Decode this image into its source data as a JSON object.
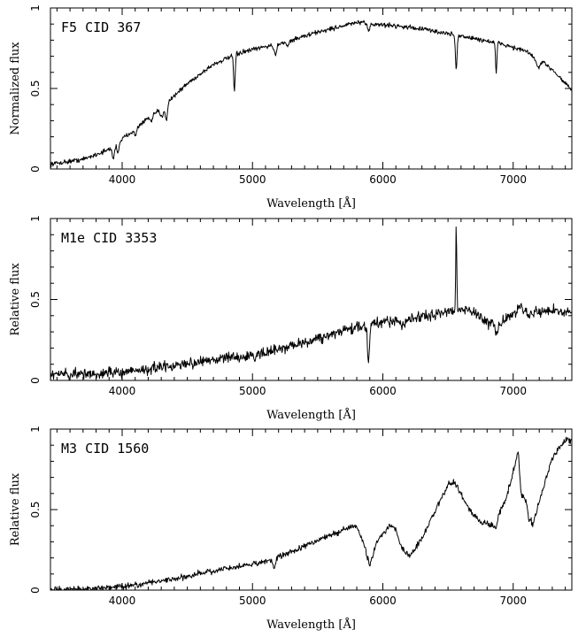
{
  "chart_data": [
    {
      "type": "line",
      "title": "F5 CID 367",
      "xlabel": "Wavelength [Å]",
      "ylabel": "Normalized flux",
      "xlim": [
        3450,
        7450
      ],
      "ylim": [
        0,
        1
      ],
      "xticks": [
        "4000",
        "5000",
        "6000",
        "7000"
      ],
      "yticks": [
        "0",
        "0.5",
        "1"
      ],
      "continuum": [
        [
          3450,
          0.03
        ],
        [
          3700,
          0.06
        ],
        [
          3900,
          0.12
        ],
        [
          4100,
          0.25
        ],
        [
          4300,
          0.38
        ],
        [
          4500,
          0.53
        ],
        [
          4700,
          0.65
        ],
        [
          4900,
          0.72
        ],
        [
          5100,
          0.76
        ],
        [
          5300,
          0.8
        ],
        [
          5500,
          0.85
        ],
        [
          5700,
          0.89
        ],
        [
          5800,
          0.91
        ],
        [
          5900,
          0.9
        ],
        [
          6100,
          0.89
        ],
        [
          6300,
          0.87
        ],
        [
          6500,
          0.84
        ],
        [
          6700,
          0.81
        ],
        [
          6900,
          0.78
        ],
        [
          7100,
          0.73
        ],
        [
          7300,
          0.62
        ],
        [
          7450,
          0.49
        ]
      ],
      "features": [
        [
          3933,
          -0.08,
          8
        ],
        [
          3968,
          -0.06,
          8
        ],
        [
          4101,
          -0.05,
          8
        ],
        [
          4226,
          -0.04,
          10
        ],
        [
          4305,
          -0.06,
          14
        ],
        [
          4340,
          -0.1,
          8
        ],
        [
          4861,
          -0.22,
          6
        ],
        [
          5175,
          -0.06,
          12
        ],
        [
          5270,
          -0.03,
          10
        ],
        [
          5890,
          -0.04,
          8
        ],
        [
          6563,
          -0.22,
          6
        ],
        [
          6870,
          -0.2,
          5
        ],
        [
          7190,
          -0.05,
          15
        ]
      ],
      "noise": 0.012
    },
    {
      "type": "line",
      "title": "M1e CID 3353",
      "xlabel": "Wavelength [Å]",
      "ylabel": "Relative flux",
      "xlim": [
        3450,
        7450
      ],
      "ylim": [
        0,
        1
      ],
      "xticks": [
        "4000",
        "5000",
        "6000",
        "7000"
      ],
      "yticks": [
        "0",
        "0.5",
        "1"
      ],
      "continuum": [
        [
          3450,
          0.04
        ],
        [
          3800,
          0.04
        ],
        [
          4100,
          0.06
        ],
        [
          4400,
          0.09
        ],
        [
          4700,
          0.13
        ],
        [
          5000,
          0.15
        ],
        [
          5200,
          0.19
        ],
        [
          5500,
          0.26
        ],
        [
          5800,
          0.33
        ],
        [
          6000,
          0.36
        ],
        [
          6200,
          0.38
        ],
        [
          6400,
          0.41
        ],
        [
          6600,
          0.44
        ],
        [
          6700,
          0.42
        ],
        [
          6800,
          0.36
        ],
        [
          6900,
          0.35
        ],
        [
          7000,
          0.42
        ],
        [
          7100,
          0.42
        ],
        [
          7300,
          0.43
        ],
        [
          7450,
          0.42
        ]
      ],
      "features": [
        [
          5890,
          -0.25,
          7
        ],
        [
          6563,
          0.55,
          4
        ],
        [
          6870,
          -0.05,
          10
        ],
        [
          7050,
          0.06,
          10
        ],
        [
          6150,
          -0.04,
          20
        ]
      ],
      "noise": 0.028
    },
    {
      "type": "line",
      "title": "M3 CID 1560",
      "xlabel": "Wavelength [Å]",
      "ylabel": "Relative flux",
      "xlim": [
        3450,
        7450
      ],
      "ylim": [
        0,
        1
      ],
      "xticks": [
        "4000",
        "5000",
        "6000",
        "7000"
      ],
      "yticks": [
        "0",
        "0.5",
        "1"
      ],
      "continuum": [
        [
          3450,
          0.0
        ],
        [
          3800,
          0.01
        ],
        [
          4100,
          0.03
        ],
        [
          4400,
          0.07
        ],
        [
          4700,
          0.12
        ],
        [
          5000,
          0.16
        ],
        [
          5150,
          0.19
        ],
        [
          5300,
          0.24
        ],
        [
          5500,
          0.31
        ],
        [
          5750,
          0.39
        ],
        [
          5800,
          0.4
        ],
        [
          5850,
          0.3
        ],
        [
          5900,
          0.15
        ],
        [
          5950,
          0.3
        ],
        [
          6050,
          0.4
        ],
        [
          6100,
          0.38
        ],
        [
          6150,
          0.25
        ],
        [
          6200,
          0.21
        ],
        [
          6300,
          0.32
        ],
        [
          6400,
          0.49
        ],
        [
          6500,
          0.66
        ],
        [
          6550,
          0.67
        ],
        [
          6650,
          0.52
        ],
        [
          6750,
          0.42
        ],
        [
          6850,
          0.4
        ],
        [
          6950,
          0.58
        ],
        [
          7000,
          0.73
        ],
        [
          7040,
          0.86
        ],
        [
          7060,
          0.6
        ],
        [
          7100,
          0.55
        ],
        [
          7150,
          0.4
        ],
        [
          7200,
          0.55
        ],
        [
          7300,
          0.82
        ],
        [
          7400,
          0.93
        ],
        [
          7450,
          0.93
        ]
      ],
      "features": [
        [
          5167,
          -0.06,
          8
        ],
        [
          6870,
          -0.04,
          8
        ],
        [
          7120,
          -0.05,
          8
        ]
      ],
      "noise": 0.015
    }
  ]
}
